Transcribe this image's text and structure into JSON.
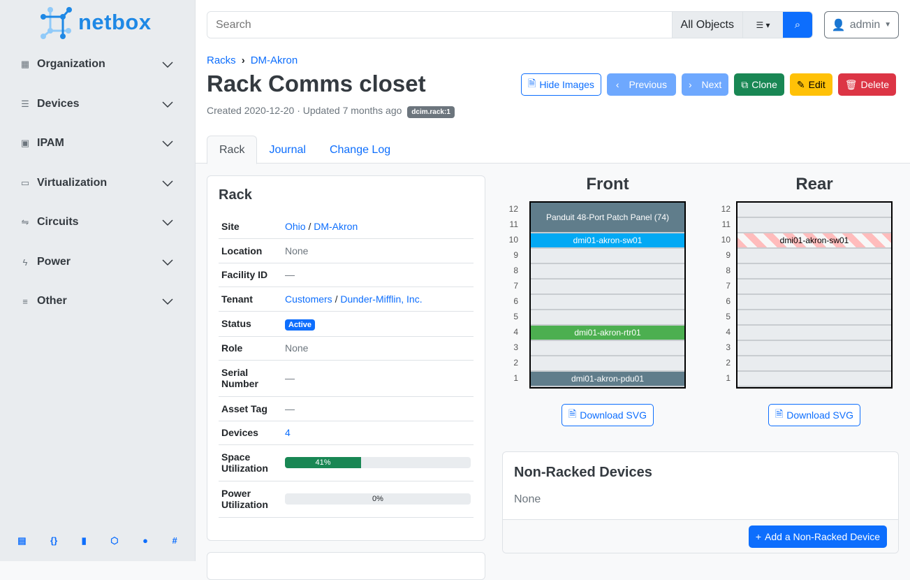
{
  "brand": "netbox",
  "sidebar": {
    "items": [
      {
        "label": "Organization",
        "icon": "building-icon"
      },
      {
        "label": "Devices",
        "icon": "server-icon"
      },
      {
        "label": "IPAM",
        "icon": "ip-icon"
      },
      {
        "label": "Virtualization",
        "icon": "monitor-icon"
      },
      {
        "label": "Circuits",
        "icon": "circuit-icon"
      },
      {
        "label": "Power",
        "icon": "flash-icon"
      },
      {
        "label": "Other",
        "icon": "list-icon"
      }
    ],
    "footer_icons": [
      "docs-icon",
      "api-icon",
      "book-icon",
      "graphql-icon",
      "github-icon",
      "slack-icon"
    ]
  },
  "search": {
    "placeholder": "Search",
    "scope": "All Objects"
  },
  "user": {
    "name": "admin"
  },
  "breadcrumb": [
    "Racks",
    "DM-Akron"
  ],
  "title": "Rack Comms closet",
  "meta": {
    "text": "Created 2020-12-20 · Updated 7 months ago",
    "badge": "dcim.rack:1"
  },
  "buttons": {
    "hide_images": "Hide Images",
    "previous": "Previous",
    "next": "Next",
    "clone": "Clone",
    "edit": "Edit",
    "delete": "Delete"
  },
  "tabs": [
    "Rack",
    "Journal",
    "Change Log"
  ],
  "rack_card": {
    "title": "Rack",
    "rows": {
      "site": {
        "label": "Site",
        "v1": "Ohio",
        "v2": "DM-Akron"
      },
      "location": {
        "label": "Location",
        "value": "None"
      },
      "facility": {
        "label": "Facility ID",
        "value": "—"
      },
      "tenant": {
        "label": "Tenant",
        "v1": "Customers",
        "v2": "Dunder-Mifflin, Inc."
      },
      "status": {
        "label": "Status",
        "value": "Active"
      },
      "role": {
        "label": "Role",
        "value": "None"
      },
      "serial": {
        "label": "Serial Number",
        "value": "—"
      },
      "asset": {
        "label": "Asset Tag",
        "value": "—"
      },
      "devices": {
        "label": "Devices",
        "value": "4"
      },
      "space": {
        "label": "Space Utilization",
        "value": "41%",
        "percent": 41
      },
      "power": {
        "label": "Power Utilization",
        "value": "0%",
        "percent": 0
      }
    }
  },
  "elevations": {
    "front": {
      "title": "Front",
      "devices": [
        {
          "name": "Panduit 48-Port Patch Panel (74)",
          "u": 11,
          "height": 2,
          "color": "#607d8b"
        },
        {
          "name": "dmi01-akron-sw01",
          "u": 10,
          "height": 1,
          "color": "#03a9f4"
        },
        {
          "name": "dmi01-akron-rtr01",
          "u": 4,
          "height": 1,
          "color": "#4caf50"
        },
        {
          "name": "dmi01-akron-pdu01",
          "u": 1,
          "height": 1,
          "color": "#607d8b"
        }
      ]
    },
    "rear": {
      "title": "Rear",
      "devices": [
        {
          "name": "dmi01-akron-sw01",
          "u": 10,
          "height": 1,
          "color": "reserved-stripes"
        }
      ]
    },
    "units": [
      12,
      11,
      10,
      9,
      8,
      7,
      6,
      5,
      4,
      3,
      2,
      1
    ],
    "download": "Download SVG"
  },
  "non_racked": {
    "title": "Non-Racked Devices",
    "value": "None",
    "add": "Add a Non-Racked Device"
  }
}
